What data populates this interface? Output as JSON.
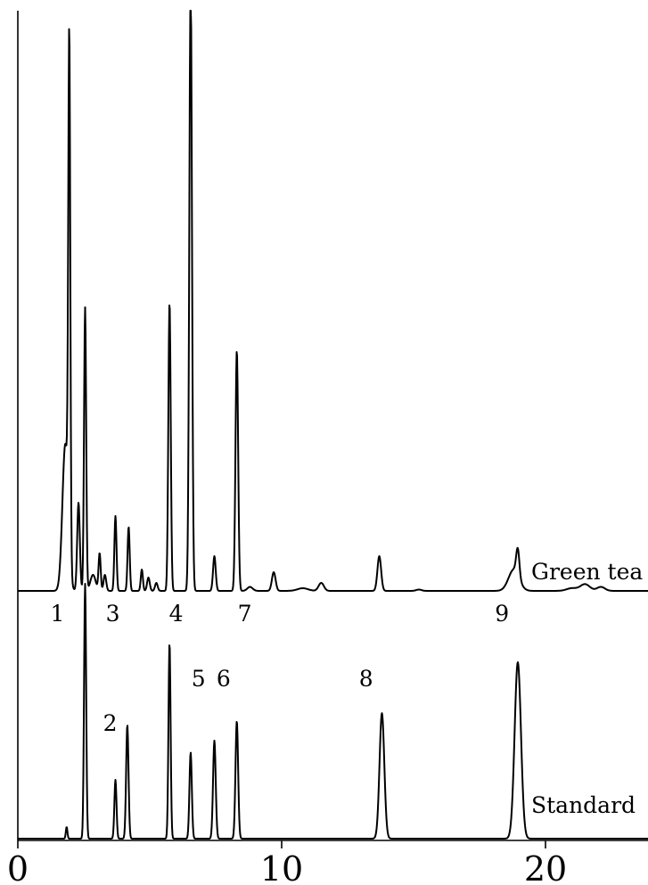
{
  "chart_data": {
    "type": "line",
    "title": "",
    "xlabel": "",
    "ylabel": "",
    "xlim": [
      0,
      24
    ],
    "x_ticks": [
      {
        "value": 0,
        "label": "0"
      },
      {
        "value": 10,
        "label": "10"
      },
      {
        "value": 20,
        "label": "20"
      }
    ],
    "grid": false,
    "colors": {
      "trace": "#000000",
      "axis": "#000000"
    },
    "series": [
      {
        "name": "Green tea",
        "baseline": 0,
        "peaks": [
          {
            "t": 1.8,
            "h": 0.55,
            "w": 0.11
          },
          {
            "t": 1.95,
            "h": 1.9,
            "w": 0.038
          },
          {
            "t": 2.3,
            "h": 0.33,
            "w": 0.05
          },
          {
            "t": 2.55,
            "h": 1.06,
            "w": 0.04
          },
          {
            "t": 2.85,
            "h": 0.06,
            "w": 0.1
          },
          {
            "t": 3.1,
            "h": 0.14,
            "w": 0.04
          },
          {
            "t": 3.3,
            "h": 0.06,
            "w": 0.05
          },
          {
            "t": 3.7,
            "h": 0.28,
            "w": 0.04
          },
          {
            "t": 4.2,
            "h": 0.24,
            "w": 0.04
          },
          {
            "t": 4.7,
            "h": 0.08,
            "w": 0.04
          },
          {
            "t": 4.95,
            "h": 0.05,
            "w": 0.05
          },
          {
            "t": 5.25,
            "h": 0.03,
            "w": 0.05
          },
          {
            "t": 5.75,
            "h": 1.08,
            "w": 0.045
          },
          {
            "t": 6.55,
            "h": 2.3,
            "w": 0.05
          },
          {
            "t": 7.45,
            "h": 0.13,
            "w": 0.05
          },
          {
            "t": 8.3,
            "h": 0.9,
            "w": 0.05
          },
          {
            "t": 8.8,
            "h": 0.015,
            "w": 0.1
          },
          {
            "t": 9.7,
            "h": 0.07,
            "w": 0.07
          },
          {
            "t": 10.8,
            "h": 0.01,
            "w": 0.2
          },
          {
            "t": 11.5,
            "h": 0.03,
            "w": 0.1
          },
          {
            "t": 13.7,
            "h": 0.13,
            "w": 0.07
          },
          {
            "t": 15.2,
            "h": 0.005,
            "w": 0.1
          },
          {
            "t": 18.8,
            "h": 0.08,
            "w": 0.2
          },
          {
            "t": 18.95,
            "h": 0.1,
            "w": 0.06
          },
          {
            "t": 21.0,
            "h": 0.01,
            "w": 0.2
          },
          {
            "t": 21.5,
            "h": 0.025,
            "w": 0.18
          },
          {
            "t": 22.1,
            "h": 0.015,
            "w": 0.15
          }
        ],
        "labels": []
      },
      {
        "name": "Standard",
        "baseline": 0,
        "peaks": [
          {
            "t": 1.85,
            "h": 0.06,
            "w": 0.03
          },
          {
            "t": 2.55,
            "h": 1.3,
            "w": 0.04
          },
          {
            "t": 3.7,
            "h": 0.3,
            "w": 0.04
          },
          {
            "t": 4.15,
            "h": 0.58,
            "w": 0.045
          },
          {
            "t": 5.75,
            "h": 1.0,
            "w": 0.04
          },
          {
            "t": 6.55,
            "h": 0.44,
            "w": 0.045
          },
          {
            "t": 7.45,
            "h": 0.5,
            "w": 0.05
          },
          {
            "t": 8.3,
            "h": 0.6,
            "w": 0.05
          },
          {
            "t": 13.8,
            "h": 0.64,
            "w": 0.09
          },
          {
            "t": 18.95,
            "h": 0.9,
            "w": 0.12
          }
        ],
        "labels": []
      }
    ],
    "peak_labels": [
      {
        "text": "1",
        "t": 1.5,
        "row": "mid"
      },
      {
        "text": "3",
        "t": 3.6,
        "row": "mid"
      },
      {
        "text": "4",
        "t": 6.0,
        "row": "mid"
      },
      {
        "text": "7",
        "t": 8.6,
        "row": "mid"
      },
      {
        "text": "9",
        "t": 18.35,
        "row": "mid"
      },
      {
        "text": "2",
        "t": 3.5,
        "row": "low"
      },
      {
        "text": "5",
        "t": 6.85,
        "row": "high"
      },
      {
        "text": "6",
        "t": 7.8,
        "row": "high"
      },
      {
        "text": "8",
        "t": 13.2,
        "row": "high"
      }
    ]
  }
}
